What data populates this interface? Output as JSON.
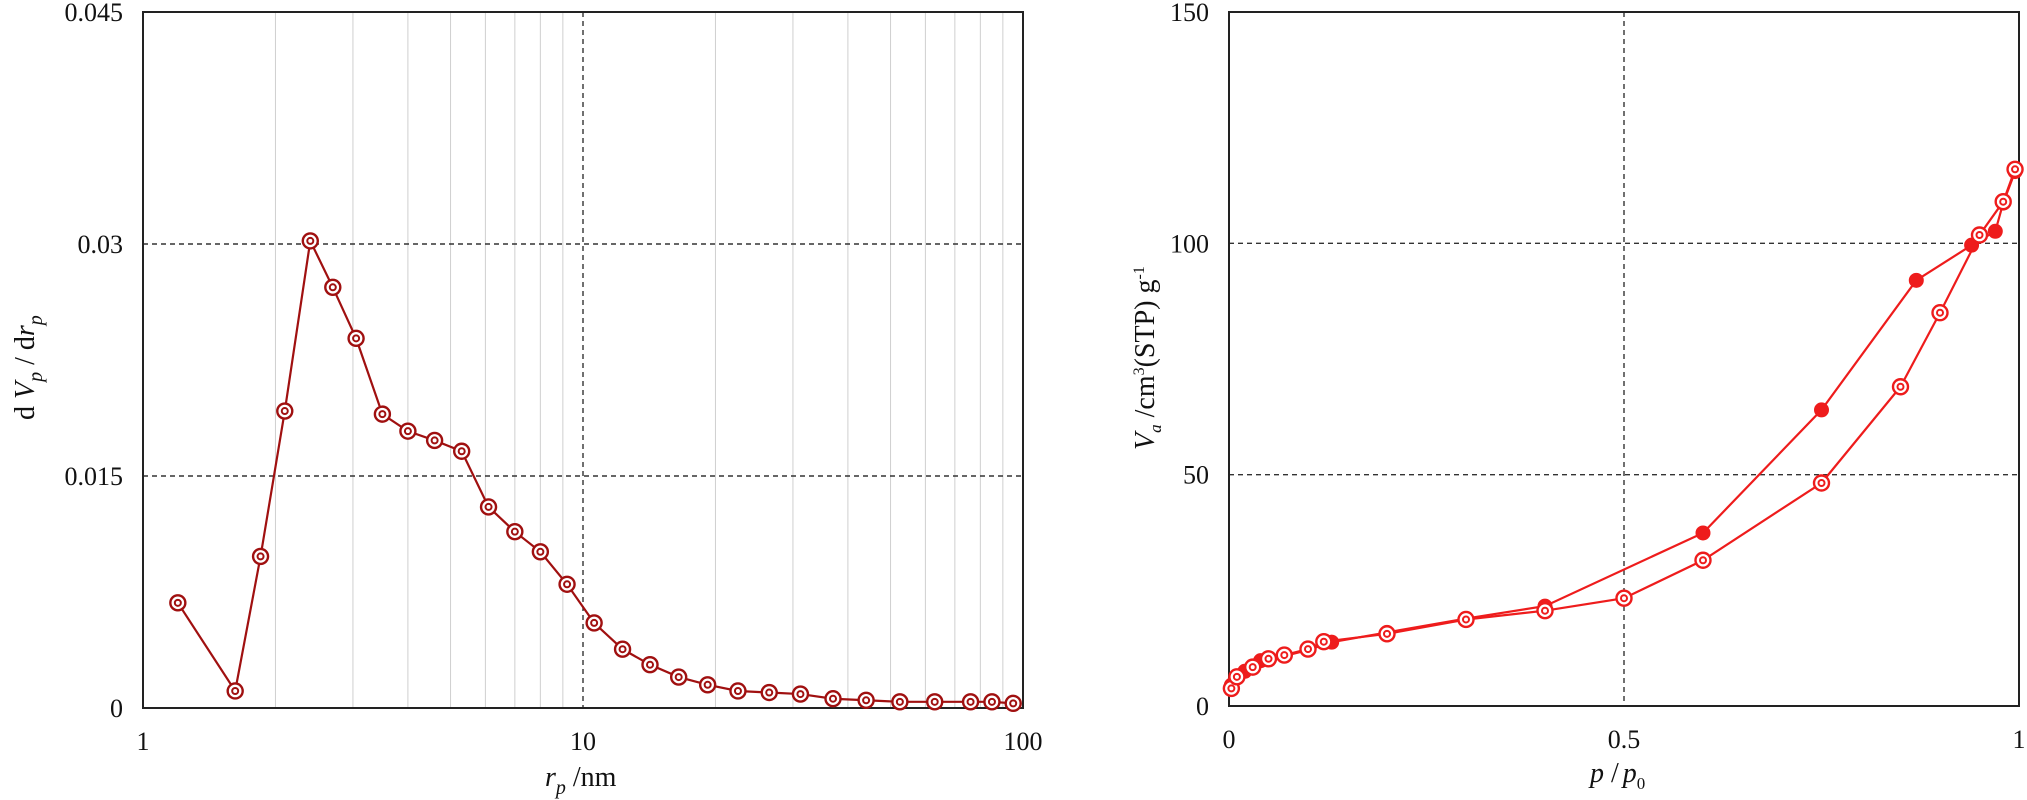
{
  "chart_data": [
    {
      "type": "scatter",
      "title": "",
      "xlabel_parts": {
        "var": "r",
        "sub": "p",
        "unit": " /nm"
      },
      "ylabel_parts": {
        "d": "d ",
        "v": "V",
        "vsub": "p",
        "mid": " / d",
        "r": "r",
        "rsub": "p"
      },
      "x_scale": "log",
      "xlim": [
        1,
        100
      ],
      "ylim": [
        0,
        0.045
      ],
      "x_ticks": [
        1,
        10,
        100
      ],
      "x_tick_labels": [
        "1",
        "10",
        "100"
      ],
      "y_ticks": [
        0,
        0.015,
        0.03,
        0.045
      ],
      "y_tick_labels": [
        "0",
        "0.015",
        "0.03",
        "0.045"
      ],
      "grid": "minor vertical (log), dashed major at x=10 and y=0.015, 0.03",
      "color": "#a01010",
      "marker": "double-ring",
      "series": [
        {
          "x": [
            1.2,
            1.62,
            1.85,
            2.1,
            2.4,
            2.7,
            3.05,
            3.5,
            4.0,
            4.6,
            5.3,
            6.1,
            7.0,
            8.0,
            9.2,
            10.6,
            12.3,
            14.2,
            16.5,
            19.2,
            22.5,
            26.5,
            31.2,
            37.0,
            44.0,
            52.5,
            63.0,
            76.0,
            85.0,
            95.0
          ],
          "y": [
            0.0068,
            0.0011,
            0.0098,
            0.0192,
            0.0302,
            0.0272,
            0.0239,
            0.019,
            0.0179,
            0.0173,
            0.0166,
            0.013,
            0.0114,
            0.0101,
            0.008,
            0.0055,
            0.0038,
            0.0028,
            0.002,
            0.0015,
            0.0011,
            0.001,
            0.0009,
            0.0006,
            0.0005,
            0.0004,
            0.0004,
            0.0004,
            0.0004,
            0.0003
          ]
        }
      ]
    },
    {
      "type": "line",
      "title": "",
      "xlabel_parts": {
        "p": "p",
        "mid": " /",
        "p0": "p",
        "p0sub": "0"
      },
      "ylabel_parts": {
        "v": "V",
        "vsub": "a",
        "unit": " /cm",
        "sup3": "3",
        "stp": "(STP) g",
        "supm1": "-1"
      },
      "xlim": [
        0,
        1
      ],
      "ylim": [
        0,
        150
      ],
      "x_ticks": [
        0,
        0.5,
        1
      ],
      "x_tick_labels": [
        "0",
        "0.5",
        "1"
      ],
      "y_ticks": [
        0,
        50,
        100,
        150
      ],
      "y_tick_labels": [
        "0",
        "50",
        "100",
        "150"
      ],
      "grid": "dashed at x=0.5 and y=50, 100",
      "color": "#ee1c1c",
      "series": [
        {
          "marker": "filled",
          "x": [
            0.003,
            0.02,
            0.04,
            0.07,
            0.1,
            0.13,
            0.2,
            0.3,
            0.4,
            0.6,
            0.75,
            0.87,
            0.94,
            0.97,
            0.98,
            0.995
          ],
          "y": [
            4.5,
            7.5,
            9.8,
            10.8,
            12.1,
            13.8,
            15.9,
            18.9,
            21.6,
            37.4,
            64.0,
            92.0,
            99.6,
            102.6,
            108.7,
            115.5
          ]
        },
        {
          "marker": "double-ring",
          "x": [
            0.003,
            0.01,
            0.03,
            0.05,
            0.07,
            0.1,
            0.12,
            0.2,
            0.3,
            0.4,
            0.5,
            0.6,
            0.75,
            0.85,
            0.9,
            0.95,
            0.98,
            0.995
          ],
          "y": [
            3.8,
            6.3,
            8.4,
            10.2,
            11.0,
            12.3,
            13.9,
            15.6,
            18.7,
            20.6,
            23.3,
            31.5,
            48.2,
            69.0,
            85.0,
            101.8,
            109.0,
            116.0
          ]
        }
      ]
    }
  ]
}
